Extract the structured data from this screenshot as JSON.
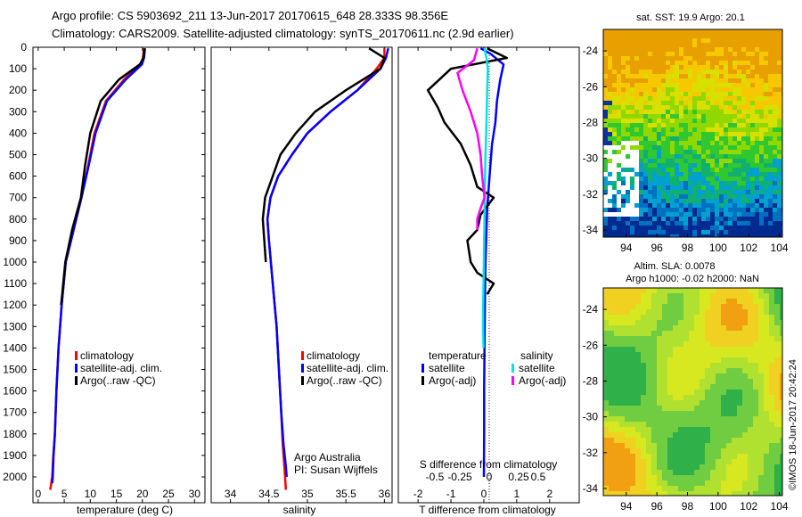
{
  "header": {
    "title_line1": "Argo profile: CS 5903692_211 13-Jun-2017 20170615_648 28.333S 98.356E",
    "title_line2": "Climatology: CARS2009. Satellite-adjusted climatology: synTS_20170611.nc (2.9d earlier)"
  },
  "colors": {
    "climatology": "#ff0000",
    "satellite": "#0000ff",
    "argo": "#000000",
    "sat_salinity": "#00e5e5",
    "argo_salinity": "#ff00ff"
  },
  "depth_ticks": [
    0,
    100,
    200,
    300,
    400,
    500,
    600,
    700,
    800,
    900,
    1000,
    1100,
    1200,
    1300,
    1400,
    1500,
    1600,
    1700,
    1800,
    1900,
    2000
  ],
  "chart_data": [
    {
      "type": "line",
      "id": "temperature",
      "xlabel": "temperature (deg C)",
      "xlim": [
        -1,
        32
      ],
      "ylim": [
        2060,
        0
      ],
      "xticks": [
        0,
        5,
        10,
        15,
        20,
        25,
        30
      ],
      "legend_placement": "bottom-left",
      "legend": [
        "climatology",
        "satellite-adj. clim.",
        "Argo(..raw -QC)"
      ],
      "series": [
        {
          "name": "climatology",
          "color": "#ff0000",
          "x": [
            20.3,
            20.1,
            19.6,
            16.5,
            13.0,
            10.8,
            9.6,
            8.3,
            6.8,
            5.3,
            4.5,
            3.9,
            3.5,
            3.2,
            2.9,
            2.7,
            2.55,
            2.45,
            2.3
          ],
          "y": [
            5,
            50,
            80,
            150,
            250,
            400,
            550,
            700,
            850,
            1000,
            1200,
            1400,
            1600,
            1800,
            1900,
            2000,
            2020,
            2040,
            2060
          ]
        },
        {
          "name": "satellite-adj. clim.",
          "color": "#0000ff",
          "x": [
            20.5,
            20.3,
            19.9,
            16.8,
            13.2,
            11.0,
            9.7,
            8.3,
            6.8,
            5.3,
            4.5,
            3.9,
            3.5,
            3.2,
            2.95,
            2.8,
            2.7
          ],
          "y": [
            5,
            50,
            80,
            150,
            250,
            400,
            550,
            700,
            850,
            1000,
            1200,
            1400,
            1600,
            1800,
            1900,
            2000,
            2030
          ]
        },
        {
          "name": "Argo(..raw -QC)",
          "color": "#000000",
          "x": [
            20.4,
            20.2,
            19.5,
            15.5,
            12.0,
            10.0,
            9.0,
            8.2,
            6.5,
            5.2,
            4.4
          ],
          "y": [
            5,
            50,
            80,
            150,
            250,
            400,
            550,
            700,
            850,
            1000,
            1200
          ]
        }
      ]
    },
    {
      "type": "line",
      "id": "salinity",
      "xlabel": "salinity",
      "xlim": [
        33.75,
        36.1
      ],
      "ylim": [
        2060,
        0
      ],
      "xticks": [
        34,
        34.5,
        35,
        35.5,
        36
      ],
      "legend_placement": "bottom-right",
      "legend": [
        "climatology",
        "satellite-adj. clim.",
        "Argo(..raw -QC)"
      ],
      "annotations": [
        "Argo Australia",
        "PI: Susan Wijffels"
      ],
      "series": [
        {
          "name": "climatology",
          "color": "#ff0000",
          "x": [
            36.0,
            36.0,
            35.9,
            35.65,
            35.3,
            35.0,
            34.8,
            34.62,
            34.52,
            34.48,
            34.5,
            34.55,
            34.6,
            34.63,
            34.66,
            34.68,
            34.7,
            34.71,
            34.72
          ],
          "y": [
            5,
            50,
            100,
            200,
            300,
            400,
            500,
            600,
            700,
            800,
            900,
            1100,
            1300,
            1500,
            1700,
            1850,
            1950,
            2000,
            2060
          ]
        },
        {
          "name": "satellite-adj. clim.",
          "color": "#0000ff",
          "x": [
            36.05,
            36.02,
            35.95,
            35.65,
            35.3,
            35.0,
            34.8,
            34.62,
            34.52,
            34.48,
            34.5,
            34.55,
            34.6,
            34.63,
            34.66,
            34.69,
            34.72,
            34.73
          ],
          "y": [
            5,
            50,
            100,
            200,
            300,
            400,
            500,
            600,
            700,
            800,
            900,
            1100,
            1300,
            1500,
            1700,
            1850,
            1950,
            2000
          ]
        },
        {
          "name": "Argo(..raw -QC)",
          "color": "#000000",
          "x": [
            35.8,
            36.0,
            35.95,
            35.5,
            35.1,
            34.85,
            34.65,
            34.55,
            34.45,
            34.42,
            34.44,
            34.46
          ],
          "y": [
            5,
            50,
            100,
            200,
            300,
            400,
            500,
            600,
            700,
            800,
            900,
            1000
          ]
        }
      ]
    },
    {
      "type": "line",
      "id": "difference",
      "xlabel_top": "S difference from climatology",
      "xlabel": "T difference from climatology",
      "xlim": [
        -2.6,
        2.9
      ],
      "ylim": [
        2060,
        0
      ],
      "xticks": [
        -2,
        -1,
        0,
        1,
        2
      ],
      "s_ticks": [
        -0.5,
        -0.25,
        0,
        0.25,
        0.5
      ],
      "s_tick_labels": [
        "-0.5",
        "-0.25",
        "0",
        "0.25",
        "0.5"
      ],
      "legend_placement": "bottom",
      "legend_headers": [
        "temperature",
        "salinity"
      ],
      "legend": [
        "satellite",
        "Argo(-adj)",
        "satellite",
        "Argo(-adj)"
      ],
      "series": [
        {
          "name": "T satellite",
          "color": "#0000ff",
          "x": [
            -0.1,
            0.2,
            0.6,
            0.5,
            0.4,
            0.35,
            0.25,
            0.2,
            0.15,
            0.1,
            0.08,
            0.05,
            0.03,
            0.02,
            0.01,
            0.01,
            0.0
          ],
          "y": [
            5,
            30,
            80,
            150,
            250,
            350,
            450,
            550,
            650,
            750,
            850,
            1000,
            1200,
            1400,
            1600,
            1800,
            2000
          ]
        },
        {
          "name": "T Argo(-adj)",
          "color": "#000000",
          "x": [
            0.1,
            0.7,
            -1.0,
            -1.7,
            -1.4,
            -1.2,
            -0.7,
            -0.4,
            -0.2,
            0.3,
            -0.1,
            -0.2,
            -0.5,
            -0.4,
            -0.2,
            0.3,
            0.1
          ],
          "y": [
            5,
            50,
            100,
            200,
            280,
            350,
            450,
            550,
            650,
            700,
            780,
            850,
            900,
            1000,
            1050,
            1100,
            1150
          ]
        },
        {
          "name": "S satellite",
          "color": "#00e5e5",
          "x": [
            0.02,
            0.08,
            0.12,
            0.1,
            0.08,
            0.05,
            0.03,
            0.02,
            0.01,
            0.0,
            -0.01,
            -0.02,
            -0.02,
            -0.01
          ],
          "y": [
            5,
            50,
            100,
            200,
            350,
            500,
            650,
            800,
            900,
            1000,
            1100,
            1200,
            1300,
            1400
          ]
        },
        {
          "name": "S Argo(-adj)",
          "color": "#ff00ff",
          "x": [
            -0.2,
            -0.3,
            -0.8,
            -0.65,
            -0.4,
            -0.2,
            -0.1,
            -0.05,
            0.02,
            -0.1,
            -0.2,
            -0.2
          ],
          "y": [
            5,
            60,
            120,
            200,
            300,
            400,
            500,
            600,
            700,
            750,
            800,
            850
          ]
        }
      ]
    },
    {
      "type": "heatmap",
      "id": "sst-map",
      "title": "sat. SST: 19.9 Argo: 20.1",
      "xticks": [
        94,
        96,
        98,
        100,
        102,
        104
      ],
      "yticks": [
        -24,
        -26,
        -28,
        -30,
        -32,
        -34
      ],
      "xlim": [
        92.5,
        104.2
      ],
      "ylim": [
        -34.4,
        -22.8
      ]
    },
    {
      "type": "heatmap",
      "id": "sla-map",
      "title_line1": "Altim. SLA: 0.0078",
      "title_line2": "Argo h1000: -0.02 h2000: NaN",
      "xticks": [
        94,
        96,
        98,
        100,
        102,
        104
      ],
      "yticks": [
        -24,
        -26,
        -28,
        -30,
        -32,
        -34
      ],
      "xlim": [
        92.5,
        104.2
      ],
      "ylim": [
        -34.4,
        -22.8
      ]
    }
  ],
  "footer": {
    "credit": "©IMOS 18-Jun-2017 20:42:24"
  }
}
